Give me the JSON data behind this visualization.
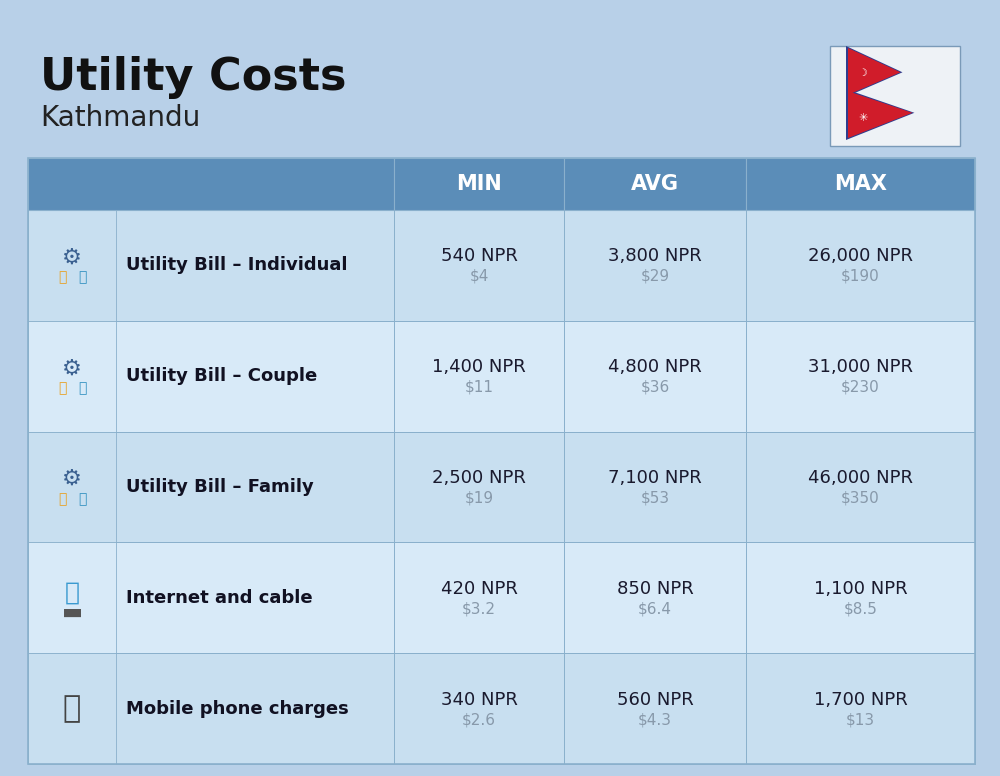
{
  "title": "Utility Costs",
  "subtitle": "Kathmandu",
  "background_color": "#b8d0e8",
  "header_bg_color": "#5b8db8",
  "header_text_color": "#ffffff",
  "row_bg_even": "#c8dff0",
  "row_bg_odd": "#d8eaf8",
  "divider_color": "#8ab0cc",
  "headers": [
    "MIN",
    "AVG",
    "MAX"
  ],
  "rows": [
    {
      "label": "Utility Bill – Individual",
      "icon_type": "utility",
      "min_npr": "540 NPR",
      "min_usd": "$4",
      "avg_npr": "3,800 NPR",
      "avg_usd": "$29",
      "max_npr": "26,000 NPR",
      "max_usd": "$190"
    },
    {
      "label": "Utility Bill – Couple",
      "icon_type": "utility",
      "min_npr": "1,400 NPR",
      "min_usd": "$11",
      "avg_npr": "4,800 NPR",
      "avg_usd": "$36",
      "max_npr": "31,000 NPR",
      "max_usd": "$230"
    },
    {
      "label": "Utility Bill – Family",
      "icon_type": "utility",
      "min_npr": "2,500 NPR",
      "min_usd": "$19",
      "avg_npr": "7,100 NPR",
      "avg_usd": "$53",
      "max_npr": "46,000 NPR",
      "max_usd": "$350"
    },
    {
      "label": "Internet and cable",
      "icon_type": "internet",
      "min_npr": "420 NPR",
      "min_usd": "$3.2",
      "avg_npr": "850 NPR",
      "avg_usd": "$6.4",
      "max_npr": "1,100 NPR",
      "max_usd": "$8.5"
    },
    {
      "label": "Mobile phone charges",
      "icon_type": "mobile",
      "min_npr": "340 NPR",
      "min_usd": "$2.6",
      "avg_npr": "560 NPR",
      "avg_usd": "$4.3",
      "max_npr": "1,700 NPR",
      "max_usd": "$13"
    }
  ],
  "npr_color": "#1a1a2e",
  "usd_color": "#8899aa",
  "label_color": "#111122",
  "title_color": "#111111",
  "subtitle_color": "#222222",
  "flag_bg": "#eef2f6",
  "flag_border": "#7a9ab8",
  "flag_red": "#d01c2a",
  "flag_blue": "#2e3d8f"
}
